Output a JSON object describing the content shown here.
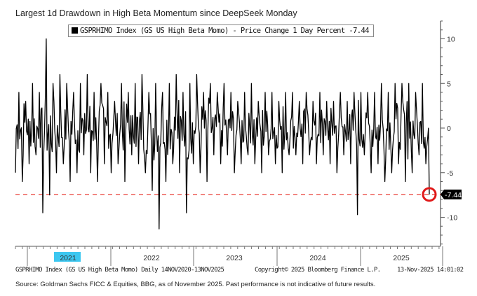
{
  "chart_data": {
    "type": "line",
    "title": "Largest 1d Drawdown in High Beta Momentum since DeepSeek Monday",
    "legend": "GSPRHIMO Index (GS US High Beta Momo) - Price Change 1 Day Percent -7.44",
    "ylim": [
      -14,
      12
    ],
    "yticks": [
      10,
      5,
      0,
      -5,
      -10
    ],
    "xticks": [
      "2021",
      "2022",
      "2023",
      "2024",
      "2025"
    ],
    "x_range": [
      "14NOV2020",
      "13NOV2025"
    ],
    "last_value": -7.44,
    "last_value_label": "-7.44",
    "threshold_line": -7.44,
    "series_color": "#000000",
    "threshold_color": "#e8403a",
    "highlight_color": "#e01818",
    "values": [
      -5,
      4,
      -6,
      3,
      -4,
      5,
      -3,
      4,
      -9.5,
      10,
      -7.5,
      5,
      -5,
      6,
      -4,
      5,
      -6,
      4,
      -5,
      5,
      -3,
      6,
      -5,
      4,
      -6,
      5,
      -4,
      4,
      -5,
      3,
      -4,
      5,
      -6,
      4,
      -3,
      5,
      -4,
      6,
      -5,
      4,
      -7,
      5,
      -11.3,
      4,
      -6,
      5,
      -4,
      6,
      -5,
      4,
      -9.5,
      5,
      -4,
      6,
      -5,
      4,
      -6,
      5,
      -3,
      4,
      -4,
      5,
      -3,
      4,
      -5,
      3,
      -4,
      4,
      -3,
      5,
      -4,
      3,
      -5,
      4,
      -3,
      4,
      -4,
      3,
      -5,
      4,
      -3,
      4,
      -3,
      3,
      -4,
      4,
      -3,
      3,
      -4,
      4,
      -3,
      3,
      -4,
      3,
      -5,
      4,
      -3,
      3,
      -4,
      4,
      -9.7,
      4,
      -3,
      4,
      -5,
      4,
      -4,
      5,
      -6,
      4,
      -5,
      5,
      -4,
      5,
      -6,
      5,
      -5,
      4,
      -3,
      5,
      -4,
      -7.44
    ],
    "annotation": "red circle marking latest value"
  },
  "footer": {
    "left": "GSPRHIMO Index (GS US High Beta Momo) Daily 14NOV2020-13NOV2025",
    "middle": "Copyright© 2025 Bloomberg Finance L.P.",
    "right": "13-Nov-2025 14:01:02",
    "source": "Source: Goldman Sachs FICC & Equities, BBG, as of November 2025. Past performance is not indicative of future results."
  }
}
